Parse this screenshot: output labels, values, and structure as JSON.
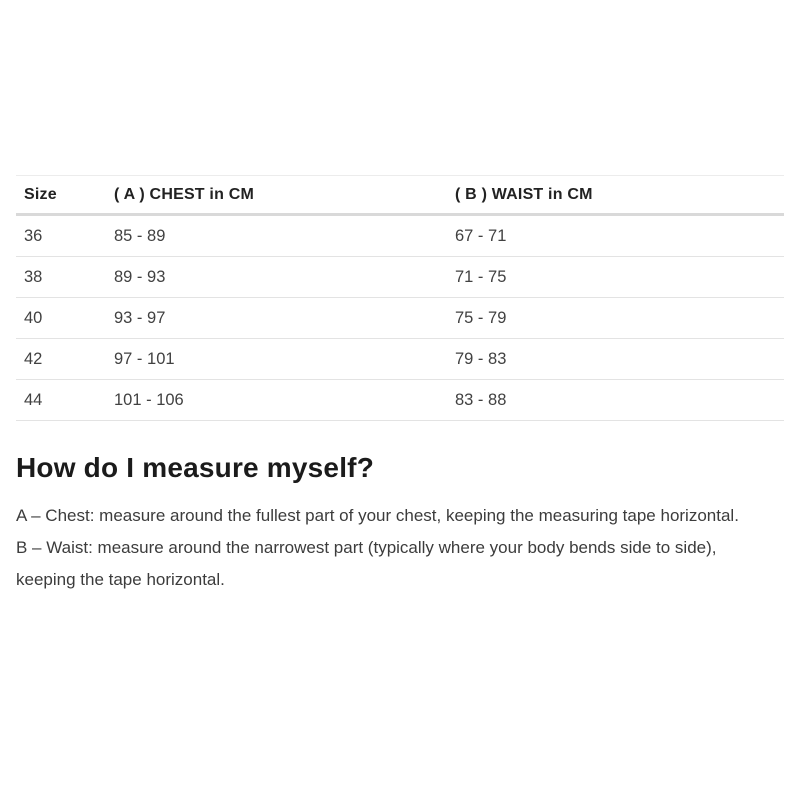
{
  "table": {
    "columns": [
      {
        "label": "Size"
      },
      {
        "label": "( A ) CHEST in CM"
      },
      {
        "label": "( B ) WAIST in CM"
      }
    ],
    "rows": [
      {
        "size": "36",
        "chest": "85 - 89",
        "waist": "67 - 71"
      },
      {
        "size": "38",
        "chest": "89 - 93",
        "waist": "71 - 75"
      },
      {
        "size": "40",
        "chest": "93 - 97",
        "waist": "75 - 79"
      },
      {
        "size": "42",
        "chest": "97 - 101",
        "waist": "79 - 83"
      },
      {
        "size": "44",
        "chest": "101 - 106",
        "waist": "83 - 88"
      }
    ]
  },
  "section": {
    "heading": "How do I measure myself?",
    "paragraphs": [
      "A – Chest: measure around the fullest part of your chest, keeping the measuring tape horizontal.",
      "B – Waist: measure around the narrowest part (typically where your body bends side to side), keeping the tape horizontal."
    ]
  },
  "colors": {
    "header_divider": "#d9d9d9",
    "row_divider": "#e3e3e3",
    "heading_text": "#1b1b1b",
    "body_text": "#3c3c3c"
  }
}
